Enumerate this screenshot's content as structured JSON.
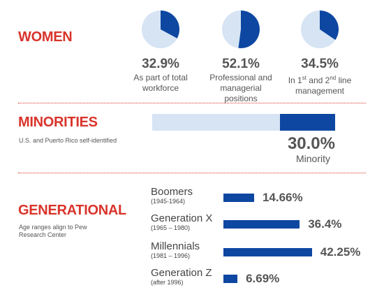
{
  "colors": {
    "accent": "#d9342b",
    "dark_blue": "#0d47a1",
    "light_blue": "#d6e4f4",
    "text": "#555555"
  },
  "women": {
    "title": "WOMEN",
    "items": [
      {
        "value_label": "32.9%",
        "caption_lines": [
          "As part of total",
          "workforce"
        ]
      },
      {
        "value_label": "52.1%",
        "caption_lines": [
          "Professional and",
          "managerial positions"
        ]
      },
      {
        "value_label": "34.5%",
        "caption_html": "In 1<sup>st</sup> and 2<sup>nd</sup> line<br>management"
      }
    ]
  },
  "minorities": {
    "title": "MINORITIES",
    "note": "U.S. and Puerto Rico self-identified",
    "value_label": "30.0%",
    "caption": "Minority"
  },
  "generational": {
    "title": "GENERATIONAL",
    "note_lines": [
      "Age ranges align to Pew",
      "Research Center"
    ],
    "items": [
      {
        "name": "Boomers",
        "range": "(1945-1964)",
        "value_label": "14.66%"
      },
      {
        "name": "Generation X",
        "range": "(1965 – 1980)",
        "value_label": "36.4%"
      },
      {
        "name": "Millennials",
        "range": "(1981 – 1996)",
        "value_label": "42.25%"
      },
      {
        "name": "Generation Z",
        "range": "(after 1996)",
        "value_label": "6.69%"
      }
    ]
  },
  "chart_data": [
    {
      "type": "pie",
      "categories": [
        "As part of total workforce",
        "Other"
      ],
      "values": [
        32.9,
        67.1
      ]
    },
    {
      "type": "pie",
      "categories": [
        "Professional and managerial positions",
        "Other"
      ],
      "values": [
        52.1,
        47.9
      ]
    },
    {
      "type": "pie",
      "categories": [
        "In 1st and 2nd line management",
        "Other"
      ],
      "values": [
        34.5,
        65.5
      ]
    },
    {
      "type": "bar",
      "categories": [
        "Minority",
        "Other"
      ],
      "values": [
        30.0,
        70.0
      ]
    },
    {
      "type": "bar",
      "categories": [
        "Boomers",
        "Generation X",
        "Millennials",
        "Generation Z"
      ],
      "values": [
        14.66,
        36.4,
        42.25,
        6.69
      ]
    }
  ]
}
